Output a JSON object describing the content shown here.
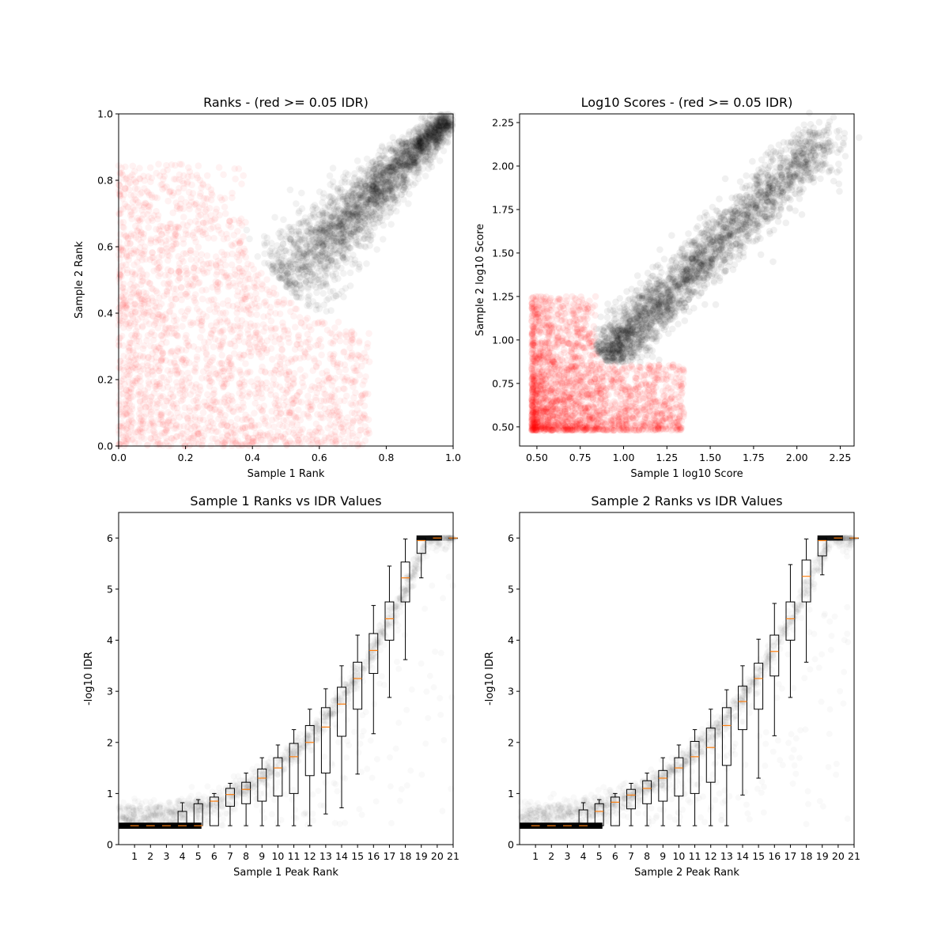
{
  "chart_data": [
    {
      "type": "scatter",
      "title": "Ranks - (red >= 0.05 IDR)",
      "xlabel": "Sample 1 Rank",
      "ylabel": "Sample 2 Rank",
      "xlim": [
        0,
        1
      ],
      "ylim": [
        0,
        1
      ],
      "xticks": [
        "0.0",
        "0.2",
        "0.4",
        "0.6",
        "0.8",
        "1.0"
      ],
      "yticks": [
        "0.0",
        "0.2",
        "0.4",
        "0.6",
        "0.8",
        "1.0"
      ],
      "series": [
        {
          "color": "#ff0000",
          "alpha": 0.05,
          "description_values": {
            "x_range": [
              0,
              0.75
            ],
            "y_range": [
              0,
              0.85
            ]
          }
        },
        {
          "color": "#000000",
          "alpha": 0.05,
          "description_values": {
            "x_range": [
              0.38,
              1.0
            ],
            "y_range": [
              0.38,
              1.0
            ]
          }
        }
      ],
      "grid": false
    },
    {
      "type": "scatter",
      "title": "Log10 Scores - (red >= 0.05 IDR)",
      "xlabel": "Sample 1 log10 Score",
      "ylabel": "Sample 2 log10 Score",
      "xlim": [
        0.4,
        2.33
      ],
      "ylim": [
        0.39,
        2.3
      ],
      "xticks": [
        "0.50",
        "0.75",
        "1.00",
        "1.25",
        "1.50",
        "1.75",
        "2.00",
        "2.25"
      ],
      "yticks": [
        "0.50",
        "0.75",
        "1.00",
        "1.25",
        "1.50",
        "1.75",
        "2.00",
        "2.25"
      ],
      "series": [
        {
          "color": "#ff0000",
          "alpha": 0.05,
          "description_values": {
            "x_range": [
              0.47,
              1.35
            ],
            "y_range": [
              0.48,
              1.25
            ]
          }
        },
        {
          "color": "#000000",
          "alpha": 0.05,
          "description_values": {
            "x_range": [
              0.85,
              2.23
            ],
            "y_range": [
              0.87,
              2.21
            ]
          }
        }
      ],
      "grid": false
    },
    {
      "type": "box",
      "title": "Sample 1 Ranks vs IDR Values",
      "xlabel": "Sample 1 Peak Rank",
      "ylabel": "-log10 IDR",
      "ylim": [
        0,
        6.5
      ],
      "xticks": [
        "1",
        "2",
        "3",
        "4",
        "5",
        "6",
        "7",
        "8",
        "9",
        "10",
        "11",
        "12",
        "13",
        "14",
        "15",
        "16",
        "17",
        "18",
        "19",
        "20",
        "21"
      ],
      "yticks": [
        "0",
        "1",
        "2",
        "3",
        "4",
        "5",
        "6"
      ],
      "boxes": [
        {
          "pos": 1,
          "q1": 0.37,
          "med": 0.37,
          "q3": 0.37,
          "lo": 0.37,
          "hi": 0.37
        },
        {
          "pos": 2,
          "q1": 0.37,
          "med": 0.37,
          "q3": 0.37,
          "lo": 0.37,
          "hi": 0.37
        },
        {
          "pos": 3,
          "q1": 0.37,
          "med": 0.37,
          "q3": 0.37,
          "lo": 0.37,
          "hi": 0.37
        },
        {
          "pos": 4,
          "q1": 0.37,
          "med": 0.37,
          "q3": 0.65,
          "lo": 0.37,
          "hi": 0.82
        },
        {
          "pos": 5,
          "q1": 0.37,
          "med": 0.37,
          "q3": 0.8,
          "lo": 0.37,
          "hi": 0.88
        },
        {
          "pos": 6,
          "q1": 0.37,
          "med": 0.85,
          "q3": 0.93,
          "lo": 0.37,
          "hi": 1.0
        },
        {
          "pos": 7,
          "q1": 0.75,
          "med": 0.98,
          "q3": 1.1,
          "lo": 0.37,
          "hi": 1.2
        },
        {
          "pos": 8,
          "q1": 0.8,
          "med": 1.08,
          "q3": 1.22,
          "lo": 0.37,
          "hi": 1.4
        },
        {
          "pos": 9,
          "q1": 0.85,
          "med": 1.3,
          "q3": 1.48,
          "lo": 0.37,
          "hi": 1.7
        },
        {
          "pos": 10,
          "q1": 0.95,
          "med": 1.5,
          "q3": 1.7,
          "lo": 0.37,
          "hi": 1.95
        },
        {
          "pos": 11,
          "q1": 1.0,
          "med": 1.72,
          "q3": 1.98,
          "lo": 0.37,
          "hi": 2.25
        },
        {
          "pos": 12,
          "q1": 1.35,
          "med": 2.0,
          "q3": 2.33,
          "lo": 0.37,
          "hi": 2.65
        },
        {
          "pos": 13,
          "q1": 1.4,
          "med": 2.3,
          "q3": 2.68,
          "lo": 0.6,
          "hi": 3.05
        },
        {
          "pos": 14,
          "q1": 2.12,
          "med": 2.75,
          "q3": 3.08,
          "lo": 0.72,
          "hi": 3.5
        },
        {
          "pos": 15,
          "q1": 2.65,
          "med": 3.25,
          "q3": 3.57,
          "lo": 1.38,
          "hi": 4.1
        },
        {
          "pos": 16,
          "q1": 3.35,
          "med": 3.8,
          "q3": 4.13,
          "lo": 2.17,
          "hi": 4.68
        },
        {
          "pos": 17,
          "q1": 4.0,
          "med": 4.42,
          "q3": 4.75,
          "lo": 2.88,
          "hi": 5.45
        },
        {
          "pos": 18,
          "q1": 4.75,
          "med": 5.22,
          "q3": 5.53,
          "lo": 3.62,
          "hi": 5.98
        },
        {
          "pos": 19,
          "q1": 5.7,
          "med": 5.95,
          "q3": 6.0,
          "lo": 5.22,
          "hi": 6.0
        },
        {
          "pos": 20,
          "q1": 6.0,
          "med": 6.0,
          "q3": 6.0,
          "lo": 6.0,
          "hi": 6.0
        },
        {
          "pos": 21,
          "q1": 6.0,
          "med": 6.0,
          "q3": 6.0,
          "lo": 6.0,
          "hi": 6.0
        }
      ]
    },
    {
      "type": "box",
      "title": "Sample 2 Ranks vs IDR Values",
      "xlabel": "Sample 2 Peak Rank",
      "ylabel": "-log10 IDR",
      "ylim": [
        0,
        6.5
      ],
      "xticks": [
        "1",
        "2",
        "3",
        "4",
        "5",
        "6",
        "7",
        "8",
        "9",
        "10",
        "11",
        "12",
        "13",
        "14",
        "15",
        "16",
        "17",
        "18",
        "19",
        "20",
        "21"
      ],
      "yticks": [
        "0",
        "1",
        "2",
        "3",
        "4",
        "5",
        "6"
      ],
      "boxes": [
        {
          "pos": 1,
          "q1": 0.37,
          "med": 0.37,
          "q3": 0.37,
          "lo": 0.37,
          "hi": 0.37
        },
        {
          "pos": 2,
          "q1": 0.37,
          "med": 0.37,
          "q3": 0.37,
          "lo": 0.37,
          "hi": 0.37
        },
        {
          "pos": 3,
          "q1": 0.37,
          "med": 0.37,
          "q3": 0.37,
          "lo": 0.37,
          "hi": 0.37
        },
        {
          "pos": 4,
          "q1": 0.37,
          "med": 0.37,
          "q3": 0.68,
          "lo": 0.37,
          "hi": 0.82
        },
        {
          "pos": 5,
          "q1": 0.37,
          "med": 0.65,
          "q3": 0.8,
          "lo": 0.37,
          "hi": 0.88
        },
        {
          "pos": 6,
          "q1": 0.37,
          "med": 0.83,
          "q3": 0.93,
          "lo": 0.37,
          "hi": 1.0
        },
        {
          "pos": 7,
          "q1": 0.7,
          "med": 0.97,
          "q3": 1.08,
          "lo": 0.37,
          "hi": 1.2
        },
        {
          "pos": 8,
          "q1": 0.8,
          "med": 1.1,
          "q3": 1.25,
          "lo": 0.37,
          "hi": 1.4
        },
        {
          "pos": 9,
          "q1": 0.85,
          "med": 1.3,
          "q3": 1.45,
          "lo": 0.37,
          "hi": 1.7
        },
        {
          "pos": 10,
          "q1": 0.95,
          "med": 1.5,
          "q3": 1.7,
          "lo": 0.37,
          "hi": 1.95
        },
        {
          "pos": 11,
          "q1": 1.0,
          "med": 1.72,
          "q3": 2.02,
          "lo": 0.37,
          "hi": 2.25
        },
        {
          "pos": 12,
          "q1": 1.22,
          "med": 1.9,
          "q3": 2.28,
          "lo": 0.37,
          "hi": 2.65
        },
        {
          "pos": 13,
          "q1": 1.55,
          "med": 2.33,
          "q3": 2.68,
          "lo": 0.37,
          "hi": 3.03
        },
        {
          "pos": 14,
          "q1": 2.25,
          "med": 2.8,
          "q3": 3.1,
          "lo": 0.97,
          "hi": 3.5
        },
        {
          "pos": 15,
          "q1": 2.65,
          "med": 3.25,
          "q3": 3.55,
          "lo": 1.3,
          "hi": 4.02
        },
        {
          "pos": 16,
          "q1": 3.3,
          "med": 3.78,
          "q3": 4.1,
          "lo": 2.13,
          "hi": 4.72
        },
        {
          "pos": 17,
          "q1": 4.0,
          "med": 4.42,
          "q3": 4.75,
          "lo": 2.88,
          "hi": 5.48
        },
        {
          "pos": 18,
          "q1": 4.75,
          "med": 5.25,
          "q3": 5.57,
          "lo": 3.57,
          "hi": 5.98
        },
        {
          "pos": 19,
          "q1": 5.65,
          "med": 5.95,
          "q3": 6.0,
          "lo": 5.28,
          "hi": 6.0
        },
        {
          "pos": 20,
          "q1": 6.0,
          "med": 6.0,
          "q3": 6.0,
          "lo": 6.0,
          "hi": 6.0
        },
        {
          "pos": 21,
          "q1": 6.0,
          "med": 6.0,
          "q3": 6.0,
          "lo": 6.0,
          "hi": 6.0
        }
      ]
    }
  ]
}
